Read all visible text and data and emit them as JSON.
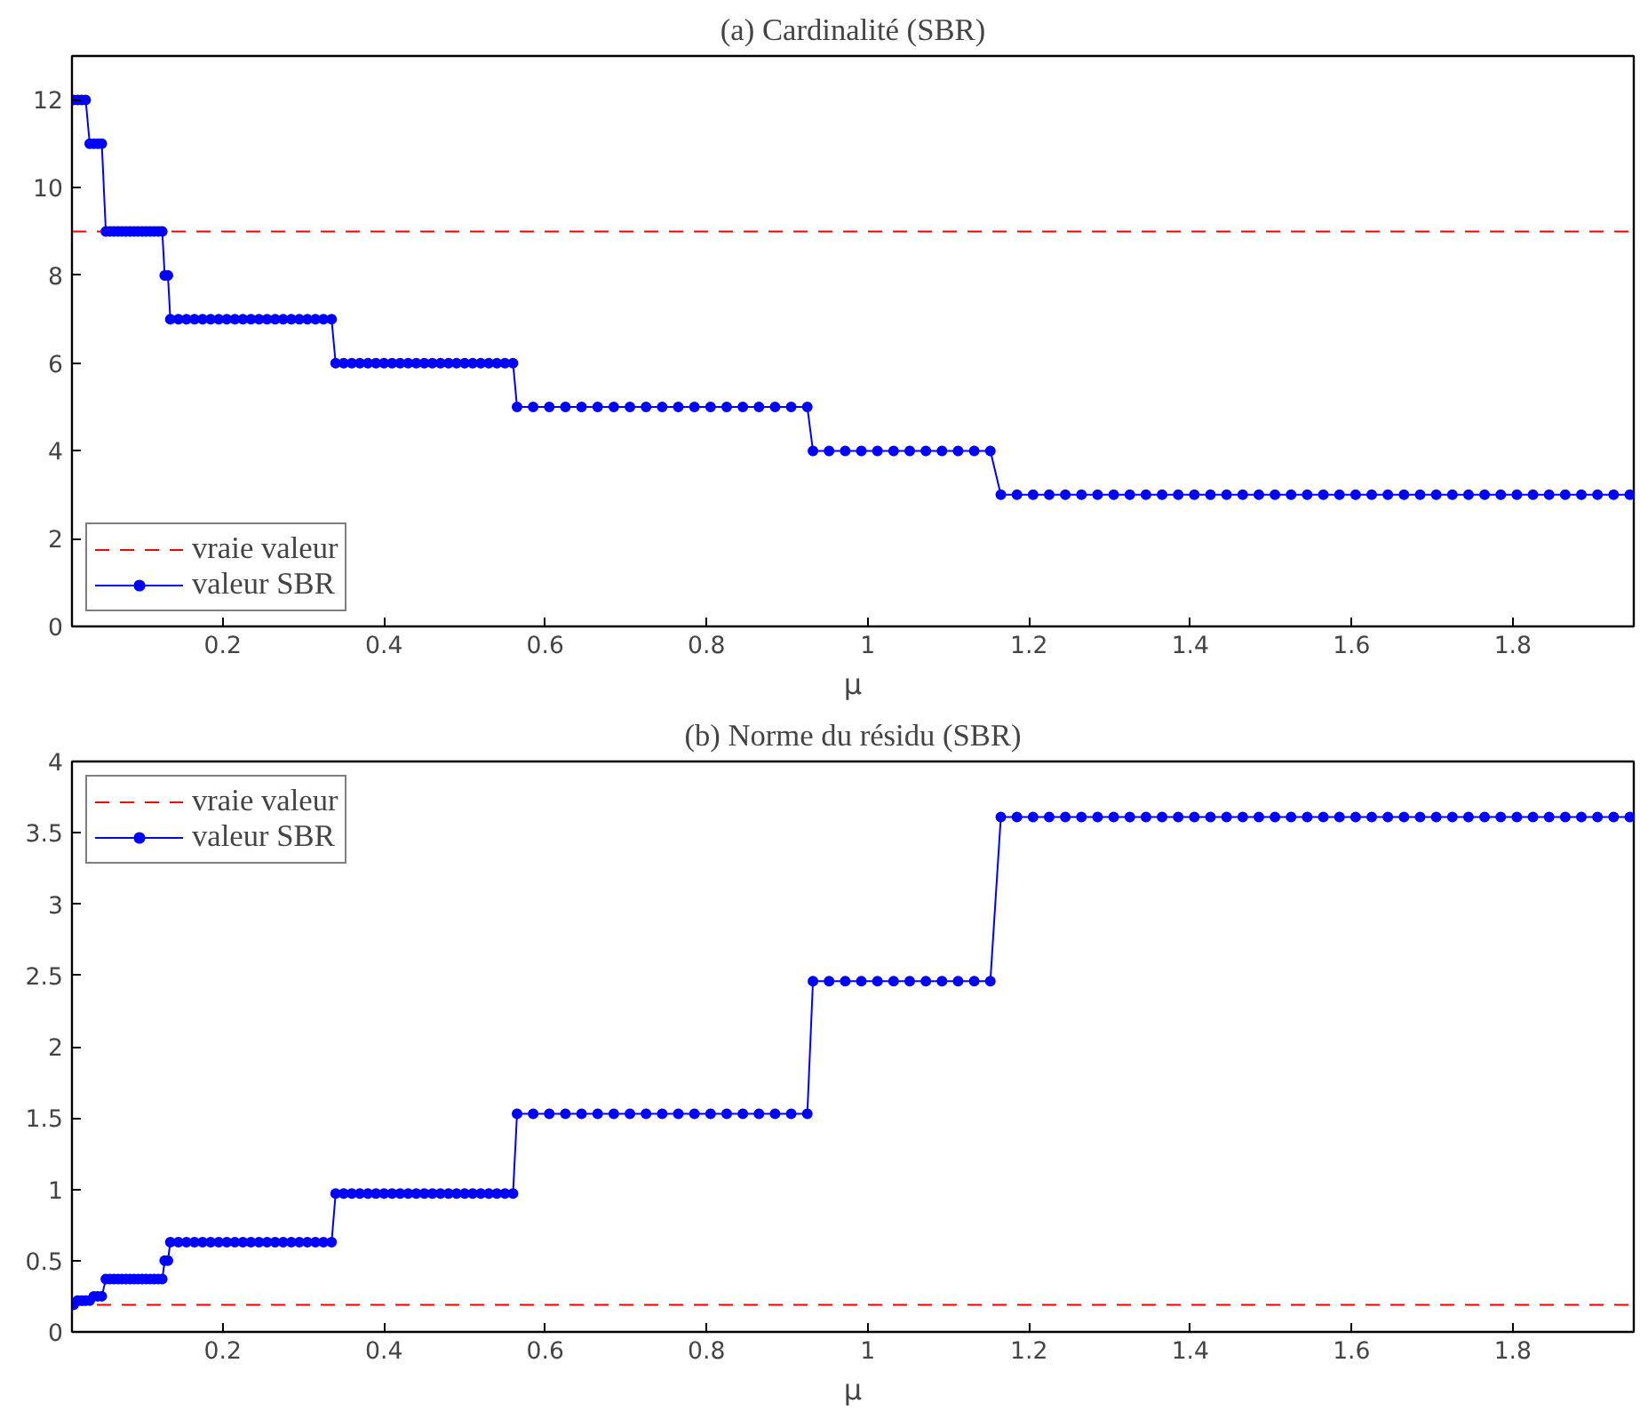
{
  "chart_data": [
    {
      "type": "line",
      "title": "(a) Cardinalité (SBR)",
      "xlabel": "μ",
      "xlim": [
        0.013,
        1.95
      ],
      "xticks": [
        0.2,
        0.4,
        0.6,
        0.8,
        1,
        1.2,
        1.4,
        1.6,
        1.8
      ],
      "ylim": [
        0,
        13
      ],
      "yticks": [
        0,
        2,
        4,
        6,
        8,
        10,
        12
      ],
      "grid": false,
      "legend": "bottom left",
      "marker": "circle",
      "line_style": "solid",
      "ref_lines": [
        {
          "axis": "y",
          "value": 9,
          "label": "vraie valeur",
          "color": "#ff0000",
          "line_style": "dashed"
        }
      ],
      "series": [
        {
          "name": "valeur SBR",
          "color": "#0000ff",
          "x": [
            0.015,
            0.02,
            0.025,
            0.03,
            0.035,
            0.04,
            0.045,
            0.05,
            0.055,
            0.06,
            0.065,
            0.07,
            0.075,
            0.08,
            0.085,
            0.09,
            0.095,
            0.1,
            0.105,
            0.11,
            0.115,
            0.12,
            0.125,
            0.128,
            0.132,
            0.135,
            0.145,
            0.155,
            0.165,
            0.175,
            0.185,
            0.195,
            0.205,
            0.215,
            0.225,
            0.235,
            0.245,
            0.255,
            0.265,
            0.275,
            0.285,
            0.295,
            0.305,
            0.315,
            0.325,
            0.335,
            0.34,
            0.35,
            0.36,
            0.37,
            0.38,
            0.39,
            0.4,
            0.41,
            0.42,
            0.43,
            0.44,
            0.45,
            0.46,
            0.47,
            0.48,
            0.49,
            0.5,
            0.51,
            0.52,
            0.53,
            0.54,
            0.55,
            0.56,
            0.565,
            0.585,
            0.605,
            0.625,
            0.645,
            0.665,
            0.685,
            0.705,
            0.725,
            0.745,
            0.765,
            0.785,
            0.805,
            0.825,
            0.845,
            0.865,
            0.885,
            0.905,
            0.925,
            0.932,
            0.952,
            0.972,
            0.992,
            1.012,
            1.032,
            1.052,
            1.072,
            1.092,
            1.112,
            1.132,
            1.152,
            1.165,
            1.185,
            1.205,
            1.225,
            1.245,
            1.265,
            1.285,
            1.305,
            1.325,
            1.345,
            1.365,
            1.385,
            1.405,
            1.425,
            1.445,
            1.465,
            1.485,
            1.505,
            1.525,
            1.545,
            1.565,
            1.585,
            1.605,
            1.625,
            1.645,
            1.665,
            1.685,
            1.705,
            1.725,
            1.745,
            1.765,
            1.785,
            1.805,
            1.825,
            1.845,
            1.865,
            1.885,
            1.905,
            1.925,
            1.945
          ],
          "values": [
            12,
            12,
            12,
            12,
            11,
            11,
            11,
            11,
            9,
            9,
            9,
            9,
            9,
            9,
            9,
            9,
            9,
            9,
            9,
            9,
            9,
            9,
            9,
            8,
            8,
            7,
            7,
            7,
            7,
            7,
            7,
            7,
            7,
            7,
            7,
            7,
            7,
            7,
            7,
            7,
            7,
            7,
            7,
            7,
            7,
            7,
            6,
            6,
            6,
            6,
            6,
            6,
            6,
            6,
            6,
            6,
            6,
            6,
            6,
            6,
            6,
            6,
            6,
            6,
            6,
            6,
            6,
            6,
            6,
            5,
            5,
            5,
            5,
            5,
            5,
            5,
            5,
            5,
            5,
            5,
            5,
            5,
            5,
            5,
            5,
            5,
            5,
            5,
            4,
            4,
            4,
            4,
            4,
            4,
            4,
            4,
            4,
            4,
            4,
            4,
            3,
            3,
            3,
            3,
            3,
            3,
            3,
            3,
            3,
            3,
            3,
            3,
            3,
            3,
            3,
            3,
            3,
            3,
            3,
            3,
            3,
            3,
            3,
            3,
            3,
            3,
            3,
            3,
            3,
            3,
            3,
            3,
            3,
            3,
            3,
            3,
            3,
            3,
            3,
            3
          ]
        }
      ]
    },
    {
      "type": "line",
      "title": "(b) Norme du résidu (SBR)",
      "xlabel": "μ",
      "xlim": [
        0.013,
        1.95
      ],
      "xticks": [
        0.2,
        0.4,
        0.6,
        0.8,
        1,
        1.2,
        1.4,
        1.6,
        1.8
      ],
      "ylim": [
        0,
        4
      ],
      "yticks": [
        0,
        0.5,
        1,
        1.5,
        2,
        2.5,
        3,
        3.5,
        4
      ],
      "grid": false,
      "legend": "top left",
      "marker": "circle",
      "line_style": "solid",
      "ref_lines": [
        {
          "axis": "y",
          "value": 0.19,
          "label": "vraie valeur",
          "color": "#ff0000",
          "line_style": "dashed"
        }
      ],
      "series": [
        {
          "name": "valeur SBR",
          "color": "#0000ff",
          "x": [
            0.015,
            0.02,
            0.025,
            0.03,
            0.035,
            0.04,
            0.045,
            0.05,
            0.055,
            0.06,
            0.065,
            0.07,
            0.075,
            0.08,
            0.085,
            0.09,
            0.095,
            0.1,
            0.105,
            0.11,
            0.115,
            0.12,
            0.125,
            0.128,
            0.132,
            0.135,
            0.145,
            0.155,
            0.165,
            0.175,
            0.185,
            0.195,
            0.205,
            0.215,
            0.225,
            0.235,
            0.245,
            0.255,
            0.265,
            0.275,
            0.285,
            0.295,
            0.305,
            0.315,
            0.325,
            0.335,
            0.34,
            0.35,
            0.36,
            0.37,
            0.38,
            0.39,
            0.4,
            0.41,
            0.42,
            0.43,
            0.44,
            0.45,
            0.46,
            0.47,
            0.48,
            0.49,
            0.5,
            0.51,
            0.52,
            0.53,
            0.54,
            0.55,
            0.56,
            0.565,
            0.585,
            0.605,
            0.625,
            0.645,
            0.665,
            0.685,
            0.705,
            0.725,
            0.745,
            0.765,
            0.785,
            0.805,
            0.825,
            0.845,
            0.865,
            0.885,
            0.905,
            0.925,
            0.932,
            0.952,
            0.972,
            0.992,
            1.012,
            1.032,
            1.052,
            1.072,
            1.092,
            1.112,
            1.132,
            1.152,
            1.165,
            1.185,
            1.205,
            1.225,
            1.245,
            1.265,
            1.285,
            1.305,
            1.325,
            1.345,
            1.365,
            1.385,
            1.405,
            1.425,
            1.445,
            1.465,
            1.485,
            1.505,
            1.525,
            1.545,
            1.565,
            1.585,
            1.605,
            1.625,
            1.645,
            1.665,
            1.685,
            1.705,
            1.725,
            1.745,
            1.765,
            1.785,
            1.805,
            1.825,
            1.845,
            1.865,
            1.885,
            1.905,
            1.925,
            1.945
          ],
          "values": [
            0.19,
            0.22,
            0.22,
            0.22,
            0.22,
            0.25,
            0.25,
            0.25,
            0.37,
            0.37,
            0.37,
            0.37,
            0.37,
            0.37,
            0.37,
            0.37,
            0.37,
            0.37,
            0.37,
            0.37,
            0.37,
            0.37,
            0.37,
            0.5,
            0.5,
            0.63,
            0.63,
            0.63,
            0.63,
            0.63,
            0.63,
            0.63,
            0.63,
            0.63,
            0.63,
            0.63,
            0.63,
            0.63,
            0.63,
            0.63,
            0.63,
            0.63,
            0.63,
            0.63,
            0.63,
            0.63,
            0.97,
            0.97,
            0.97,
            0.97,
            0.97,
            0.97,
            0.97,
            0.97,
            0.97,
            0.97,
            0.97,
            0.97,
            0.97,
            0.97,
            0.97,
            0.97,
            0.97,
            0.97,
            0.97,
            0.97,
            0.97,
            0.97,
            0.97,
            1.53,
            1.53,
            1.53,
            1.53,
            1.53,
            1.53,
            1.53,
            1.53,
            1.53,
            1.53,
            1.53,
            1.53,
            1.53,
            1.53,
            1.53,
            1.53,
            1.53,
            1.53,
            1.53,
            2.46,
            2.46,
            2.46,
            2.46,
            2.46,
            2.46,
            2.46,
            2.46,
            2.46,
            2.46,
            2.46,
            2.46,
            3.61,
            3.61,
            3.61,
            3.61,
            3.61,
            3.61,
            3.61,
            3.61,
            3.61,
            3.61,
            3.61,
            3.61,
            3.61,
            3.61,
            3.61,
            3.61,
            3.61,
            3.61,
            3.61,
            3.61,
            3.61,
            3.61,
            3.61,
            3.61,
            3.61,
            3.61,
            3.61,
            3.61,
            3.61,
            3.61,
            3.61,
            3.61,
            3.61,
            3.61,
            3.61,
            3.61,
            3.61,
            3.61,
            3.61,
            3.61
          ]
        }
      ]
    }
  ]
}
